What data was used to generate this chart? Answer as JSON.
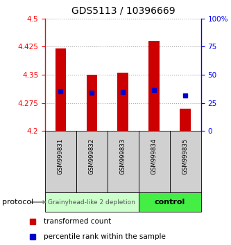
{
  "title": "GDS5113 / 10396669",
  "samples": [
    "GSM999831",
    "GSM999832",
    "GSM999833",
    "GSM999834",
    "GSM999835"
  ],
  "bar_bottoms": [
    4.2,
    4.2,
    4.2,
    4.2,
    4.2
  ],
  "bar_tops": [
    4.42,
    4.35,
    4.355,
    4.44,
    4.26
  ],
  "percentile_values": [
    4.305,
    4.302,
    4.303,
    4.31,
    4.295
  ],
  "ylim": [
    4.2,
    4.5
  ],
  "yticks": [
    4.2,
    4.275,
    4.35,
    4.425,
    4.5
  ],
  "right_yticks": [
    0,
    25,
    50,
    75,
    100
  ],
  "bar_color": "#cc0000",
  "percentile_color": "#0000cc",
  "group1_label": "Grainyhead-like 2 depletion",
  "group1_color": "#ccffcc",
  "group1_count": 3,
  "group2_label": "control",
  "group2_color": "#44ee44",
  "group2_count": 2,
  "sample_bg_color": "#d0d0d0",
  "grid_color": "#aaaaaa",
  "legend_red_label": "transformed count",
  "legend_blue_label": "percentile rank within the sample",
  "protocol_label": "protocol",
  "bar_width": 0.35
}
